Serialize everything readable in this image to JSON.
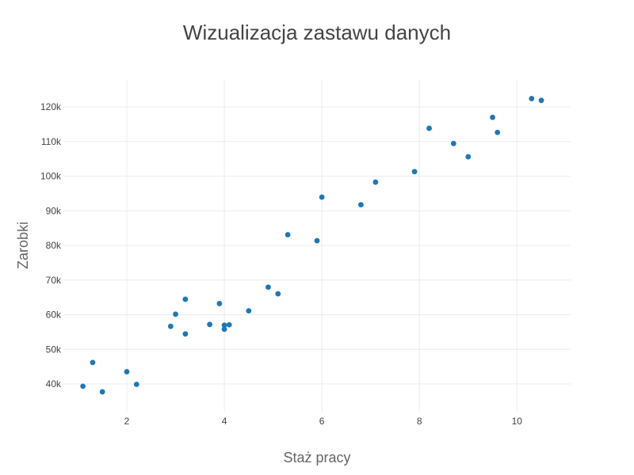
{
  "chart_data": {
    "type": "scatter",
    "title": "Wizualizacja zastawu danych",
    "xlabel": "Staż pracy",
    "ylabel": "Zarobki",
    "xlim": [
      0.7,
      11.1
    ],
    "ylim": [
      32000,
      128000
    ],
    "x_ticks": [
      2,
      4,
      6,
      8,
      10
    ],
    "y_ticks": [
      40000,
      50000,
      60000,
      70000,
      80000,
      90000,
      100000,
      110000,
      120000
    ],
    "y_tick_labels": [
      "40k",
      "50k",
      "60k",
      "70k",
      "80k",
      "90k",
      "100k",
      "110k",
      "120k"
    ],
    "grid": true,
    "color": "#1f77b4",
    "points": [
      {
        "x": 1.1,
        "y": 39343
      },
      {
        "x": 1.3,
        "y": 46205
      },
      {
        "x": 1.5,
        "y": 37731
      },
      {
        "x": 2.0,
        "y": 43525
      },
      {
        "x": 2.2,
        "y": 39891
      },
      {
        "x": 2.9,
        "y": 56642
      },
      {
        "x": 3.0,
        "y": 60150
      },
      {
        "x": 3.2,
        "y": 54445
      },
      {
        "x": 3.2,
        "y": 64445
      },
      {
        "x": 3.7,
        "y": 57189
      },
      {
        "x": 3.9,
        "y": 63218
      },
      {
        "x": 4.0,
        "y": 55794
      },
      {
        "x": 4.0,
        "y": 56957
      },
      {
        "x": 4.1,
        "y": 57081
      },
      {
        "x": 4.5,
        "y": 61111
      },
      {
        "x": 4.9,
        "y": 67938
      },
      {
        "x": 5.1,
        "y": 66029
      },
      {
        "x": 5.3,
        "y": 83088
      },
      {
        "x": 5.9,
        "y": 81363
      },
      {
        "x": 6.0,
        "y": 93940
      },
      {
        "x": 6.8,
        "y": 91738
      },
      {
        "x": 7.1,
        "y": 98273
      },
      {
        "x": 7.9,
        "y": 101302
      },
      {
        "x": 8.2,
        "y": 113812
      },
      {
        "x": 8.7,
        "y": 109431
      },
      {
        "x": 9.0,
        "y": 105582
      },
      {
        "x": 9.5,
        "y": 116969
      },
      {
        "x": 9.6,
        "y": 112635
      },
      {
        "x": 10.3,
        "y": 122391
      },
      {
        "x": 10.5,
        "y": 121872
      }
    ]
  }
}
